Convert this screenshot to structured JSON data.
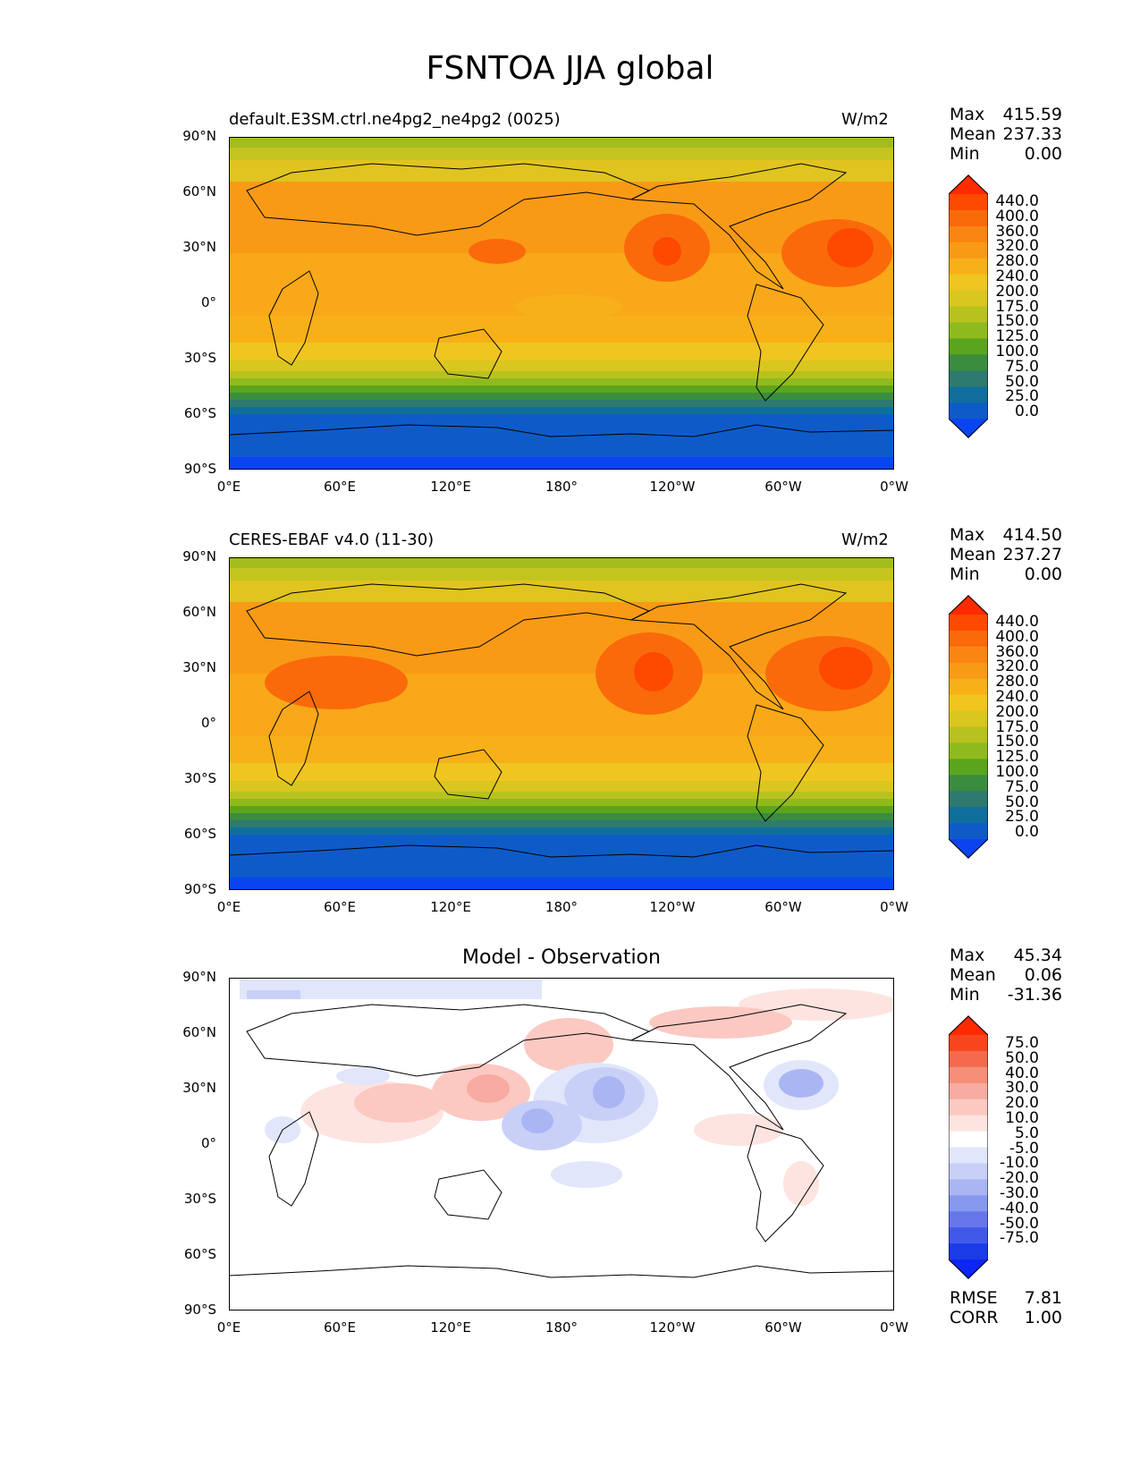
{
  "figure": {
    "title": "FSNTOA JJA global"
  },
  "axes": {
    "lat_ticks": [
      "90°N",
      "60°N",
      "30°N",
      "0°",
      "30°S",
      "60°S",
      "90°S"
    ],
    "lon_ticks": [
      "0°E",
      "60°E",
      "120°E",
      "180°",
      "120°W",
      "60°W",
      "0°W"
    ]
  },
  "panels": [
    {
      "left_title": "default.E3SM.ctrl.ne4pg2_ne4pg2 (0025)",
      "right_title": "W/m2",
      "stats": [
        {
          "label": "Max",
          "value": "415.59"
        },
        {
          "label": "Mean",
          "value": "237.33"
        },
        {
          "label": "Min",
          "value": "0.00"
        }
      ]
    },
    {
      "left_title": "CERES-EBAF v4.0 (11-30)",
      "right_title": "W/m2",
      "stats": [
        {
          "label": "Max",
          "value": "414.50"
        },
        {
          "label": "Mean",
          "value": "237.27"
        },
        {
          "label": "Min",
          "value": "0.00"
        }
      ]
    },
    {
      "center_title": "Model - Observation",
      "stats": [
        {
          "label": "Max",
          "value": "45.34"
        },
        {
          "label": "Mean",
          "value": "0.06"
        },
        {
          "label": "Min",
          "value": "-31.36"
        }
      ],
      "extra_stats": [
        {
          "label": "RMSE",
          "value": "7.81"
        },
        {
          "label": "CORR",
          "value": "1.00"
        }
      ]
    }
  ],
  "colorbars": {
    "field": {
      "labels": [
        "440.0",
        "400.0",
        "360.0",
        "320.0",
        "280.0",
        "240.0",
        "200.0",
        "175.0",
        "150.0",
        "125.0",
        "100.0",
        "75.0",
        "50.0",
        "25.0",
        "0.0"
      ],
      "colors": [
        "#ff2a00",
        "#fd4a00",
        "#fb6a0a",
        "#fa8612",
        "#f99a16",
        "#f8b019",
        "#f0c520",
        "#d9c61f",
        "#b7c21e",
        "#8fba1e",
        "#5aa51d",
        "#3a8d3e",
        "#2e7a6e",
        "#0f6e9c",
        "#0e5bc7",
        "#0a44f0"
      ]
    },
    "diff": {
      "labels": [
        "75.0",
        "50.0",
        "40.0",
        "30.0",
        "20.0",
        "10.0",
        "5.0",
        "-5.0",
        "-10.0",
        "-20.0",
        "-30.0",
        "-40.0",
        "-50.0",
        "-75.0"
      ],
      "colors": [
        "#ff2a00",
        "#f9451d",
        "#f46a4c",
        "#f58f78",
        "#f8aba0",
        "#fbc9c2",
        "#fde4e0",
        "#ffffff",
        "#e1e6fb",
        "#c8d0f8",
        "#aab6f3",
        "#8799ef",
        "#6677eb",
        "#4159e8",
        "#1b3be6",
        "#0b26f5"
      ]
    }
  }
}
